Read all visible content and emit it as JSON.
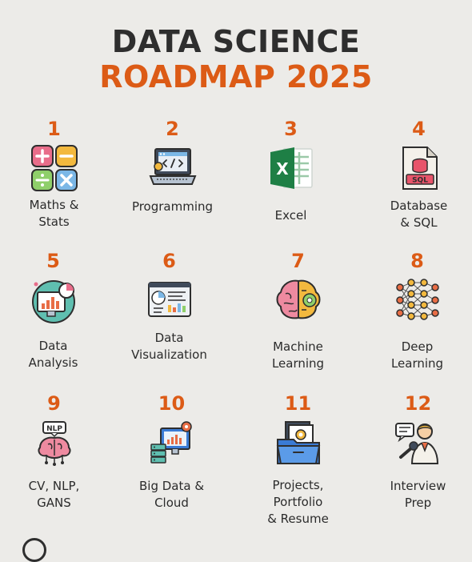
{
  "header": {
    "line1": "DATA SCIENCE",
    "line2": "ROADMAP 2025"
  },
  "colors": {
    "accent": "#dc5b16",
    "text": "#2e2e2e",
    "background": "#ecebe8"
  },
  "steps": [
    {
      "number": "1",
      "label_line1": "Maths &",
      "label_line2": "Stats",
      "icon": "math-operations-icon"
    },
    {
      "number": "2",
      "label_line1": "Programming",
      "label_line2": "",
      "icon": "laptop-code-icon"
    },
    {
      "number": "3",
      "label_line1": "Excel",
      "label_line2": "",
      "icon": "excel-icon"
    },
    {
      "number": "4",
      "label_line1": "Database",
      "label_line2": "& SQL",
      "icon": "sql-file-icon"
    },
    {
      "number": "5",
      "label_line1": "Data",
      "label_line2": "Analysis",
      "icon": "analysis-monitor-icon"
    },
    {
      "number": "6",
      "label_line1": "Data",
      "label_line2": "Visualization",
      "icon": "dashboard-icon"
    },
    {
      "number": "7",
      "label_line1": "Machine",
      "label_line2": "Learning",
      "icon": "brain-gear-icon"
    },
    {
      "number": "8",
      "label_line1": "Deep",
      "label_line2": "Learning",
      "icon": "neural-network-icon"
    },
    {
      "number": "9",
      "label_line1": "CV, NLP,",
      "label_line2": "GANS",
      "icon": "nlp-brain-icon"
    },
    {
      "number": "10",
      "label_line1": "Big Data &",
      "label_line2": "Cloud",
      "icon": "server-monitor-icon"
    },
    {
      "number": "11",
      "label_line1": "Projects,",
      "label_line2": "Portfolio",
      "label_line3": "& Resume",
      "icon": "portfolio-folder-icon"
    },
    {
      "number": "12",
      "label_line1": "Interview",
      "label_line2": "Prep",
      "icon": "interview-person-icon"
    }
  ],
  "icon_labels": {
    "sql": "SQL",
    "nlp": "NLP",
    "excel": "X"
  }
}
